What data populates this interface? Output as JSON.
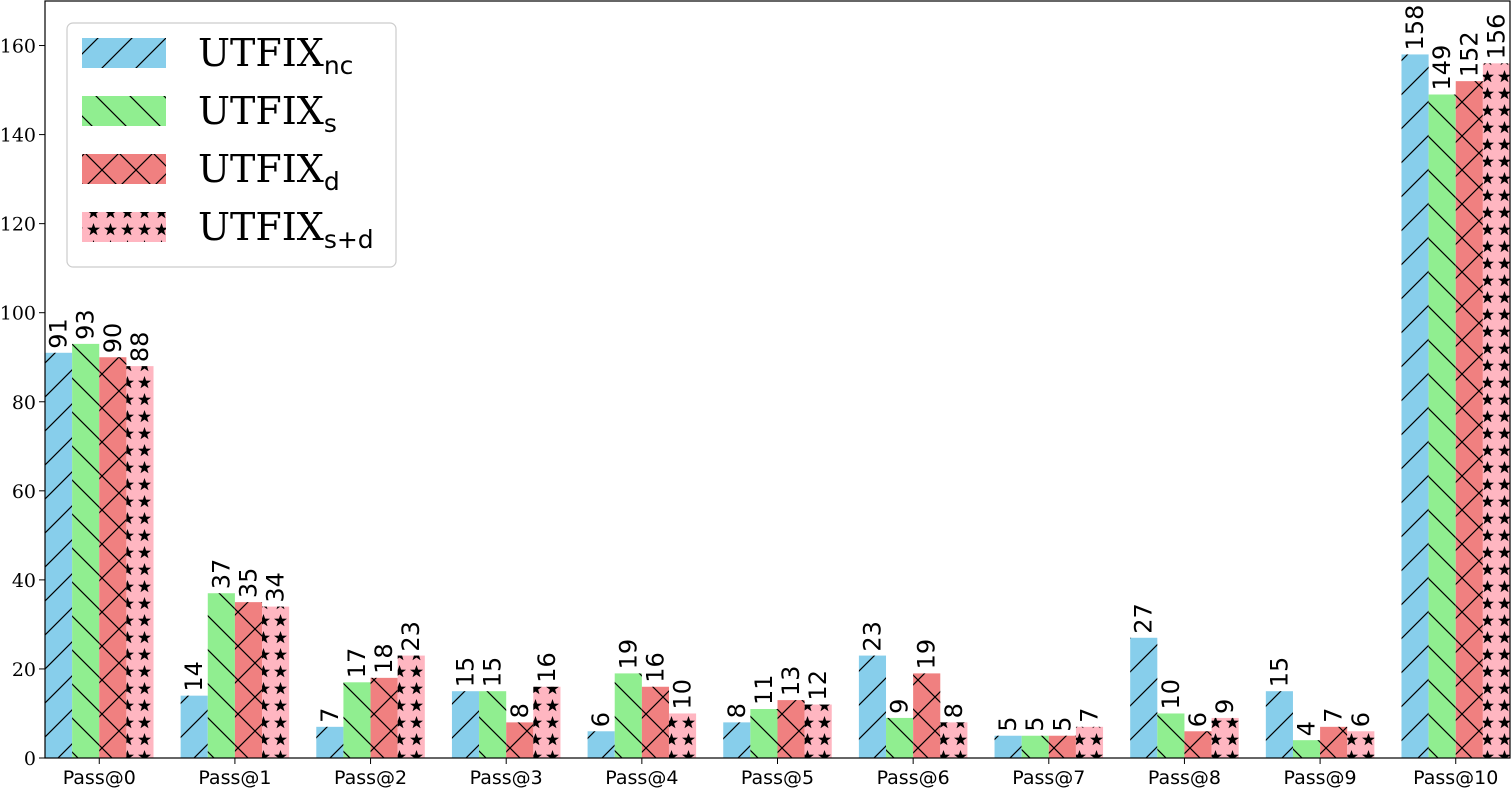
{
  "chart_data": {
    "type": "bar",
    "title": "",
    "xlabel": "",
    "ylabel": "",
    "categories": [
      "Pass@0",
      "Pass@1",
      "Pass@2",
      "Pass@3",
      "Pass@4",
      "Pass@5",
      "Pass@6",
      "Pass@7",
      "Pass@8",
      "Pass@9",
      "Pass@10"
    ],
    "ylim": [
      0,
      170
    ],
    "yticks": [
      0,
      20,
      40,
      60,
      80,
      100,
      120,
      140,
      160
    ],
    "grid": false,
    "legend_position": "top-left",
    "series": [
      {
        "name": "UTFIX",
        "subscript": "nc",
        "color": "#87ceeb",
        "hatch": "forward-slash",
        "values": [
          91,
          14,
          7,
          15,
          6,
          8,
          23,
          5,
          27,
          15,
          158
        ]
      },
      {
        "name": "UTFIX",
        "subscript": "s",
        "color": "#90ee90",
        "hatch": "back-slash",
        "values": [
          93,
          37,
          17,
          15,
          19,
          11,
          9,
          5,
          10,
          4,
          149
        ]
      },
      {
        "name": "UTFIX",
        "subscript": "d",
        "color": "#f08080",
        "hatch": "cross",
        "values": [
          90,
          35,
          18,
          8,
          16,
          13,
          19,
          5,
          6,
          7,
          152
        ]
      },
      {
        "name": "UTFIX",
        "subscript": "s+d",
        "color": "#ffb6c1",
        "hatch": "stars",
        "values": [
          88,
          34,
          23,
          16,
          10,
          12,
          8,
          7,
          9,
          6,
          156
        ]
      }
    ]
  }
}
